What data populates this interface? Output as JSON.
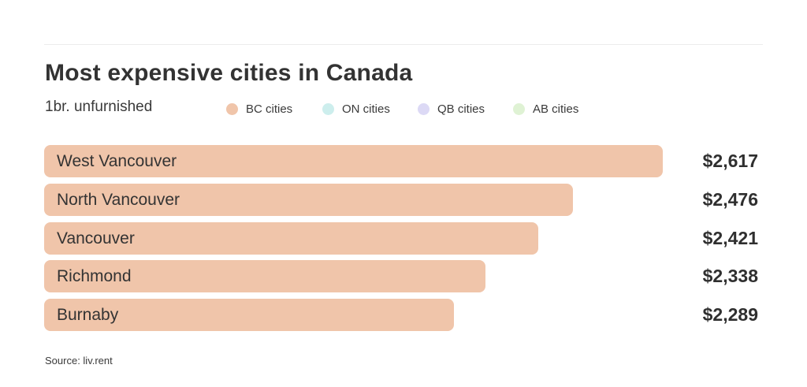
{
  "title": "Most expensive cities in Canada",
  "subtitle": "1br. unfurnished",
  "source": "Source: liv.rent",
  "legend": [
    {
      "label": "BC cities",
      "color": "#f0c5aa"
    },
    {
      "label": "ON cities",
      "color": "#cdeeed"
    },
    {
      "label": "QB cities",
      "color": "#dcd9f5"
    },
    {
      "label": "AB cities",
      "color": "#dff2d4"
    }
  ],
  "chart_data": {
    "type": "bar",
    "orientation": "horizontal",
    "title": "Most expensive cities in Canada",
    "subtitle": "1br. unfurnished",
    "categories": [
      "West Vancouver",
      "North Vancouver",
      "Vancouver",
      "Richmond",
      "Burnaby"
    ],
    "values": [
      2617,
      2476,
      2421,
      2338,
      2289
    ],
    "value_labels": [
      "$2,617",
      "$2,476",
      "$2,421",
      "$2,338",
      "$2,289"
    ],
    "province": [
      "BC",
      "BC",
      "BC",
      "BC",
      "BC"
    ],
    "bar_color": "#f0c5aa",
    "legend_position": "top",
    "grid": false
  }
}
